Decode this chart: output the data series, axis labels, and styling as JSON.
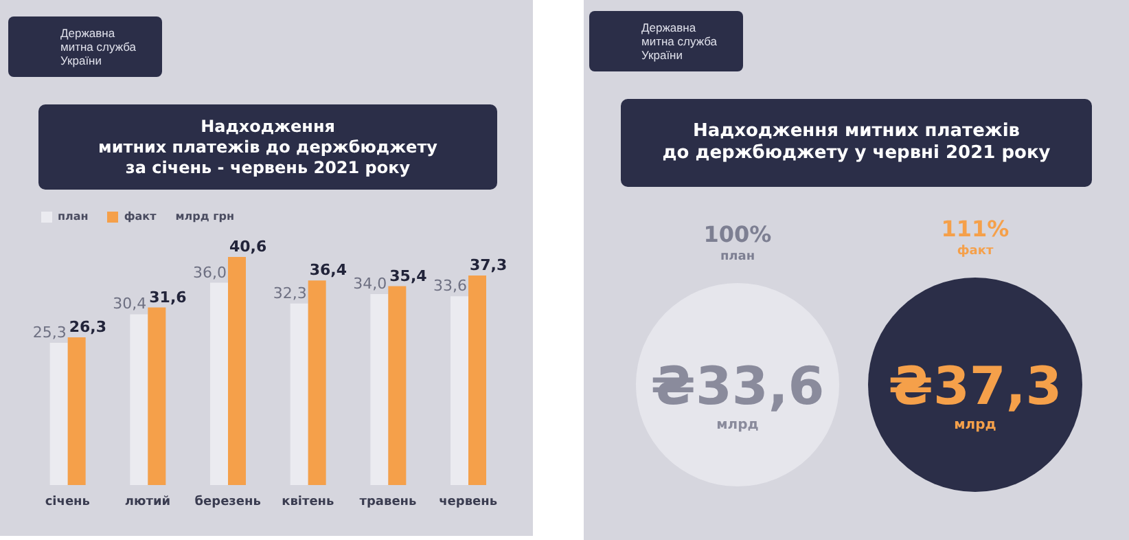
{
  "chart_data": [
    {
      "type": "bar",
      "title": "Надходження\nмитних платежів до держбюджету\nза січень - червень 2021 року",
      "annotations": [
        "Державна\nмитна служба\nУкраїни"
      ],
      "ylabel": "млрд грн",
      "legend": "top left",
      "categories": [
        "січень",
        "лютий",
        "березень",
        "квітень",
        "травень",
        "червень"
      ],
      "series": [
        {
          "name": "план",
          "color": "#ebebf0",
          "values": [
            25.3,
            30.4,
            36.0,
            32.3,
            34.0,
            33.6
          ],
          "value_labels": [
            "25,3",
            "30,4",
            "36,0",
            "32,3",
            "34,0",
            "33,6"
          ]
        },
        {
          "name": "факт",
          "color": "#f5a04a",
          "values": [
            26.3,
            31.6,
            40.6,
            36.4,
            35.4,
            37.3
          ],
          "value_labels": [
            "26,3",
            "31,6",
            "40,6",
            "36,4",
            "35,4",
            "37,3"
          ]
        }
      ]
    },
    {
      "type": "other",
      "title": "Надходження митних платежів\nдо держбюджету у червні 2021 року",
      "annotations": [
        "Державна\nмитна служба\nУкраїни",
        {
          "text": "100%",
          "x": "план"
        },
        {
          "text": "111%",
          "x": "факт"
        },
        {
          "text": "млрд",
          "x": "план"
        },
        {
          "text": "млрд",
          "x": "факт"
        }
      ],
      "categories": [
        "план",
        "факт"
      ],
      "values": [
        33.6,
        37.3
      ],
      "value_labels": [
        "₴33,6",
        "₴37,3"
      ],
      "colors": [
        "#e6e6ec",
        "#2b2e48"
      ]
    }
  ]
}
